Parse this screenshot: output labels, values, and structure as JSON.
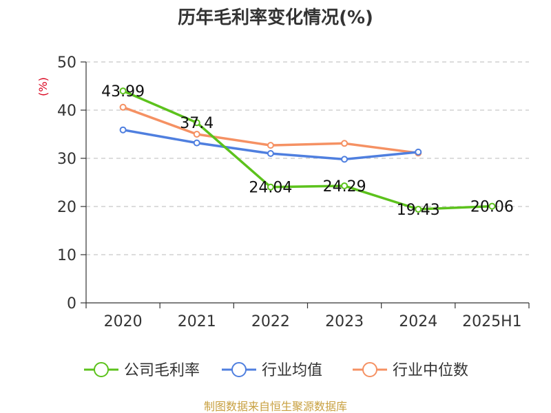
{
  "chart_data": {
    "type": "line",
    "title": "历年毛利率变化情况(%)",
    "y_unit": "(%)",
    "categories": [
      "2020",
      "2021",
      "2022",
      "2023",
      "2024",
      "2025H1"
    ],
    "ylim": [
      0,
      50
    ],
    "yticks": [
      0,
      10,
      20,
      30,
      40,
      50
    ],
    "grid": true,
    "legend_position": "bottom",
    "series": [
      {
        "name": "公司毛利率",
        "color": "#5cc21c",
        "values": [
          43.99,
          37.4,
          24.04,
          24.29,
          19.43,
          20.06
        ],
        "labels": [
          "43.99",
          "37.4",
          "24.04",
          "24.29",
          "19.43",
          "20.06"
        ]
      },
      {
        "name": "行业均值",
        "color": "#4f7fdf",
        "values": [
          35.9,
          33.2,
          31.0,
          29.8,
          31.3,
          null
        ]
      },
      {
        "name": "行业中位数",
        "color": "#f59163",
        "values": [
          40.6,
          35.0,
          32.7,
          33.1,
          31.1,
          null
        ]
      }
    ],
    "source": "制图数据来自恒生聚源数据库"
  }
}
